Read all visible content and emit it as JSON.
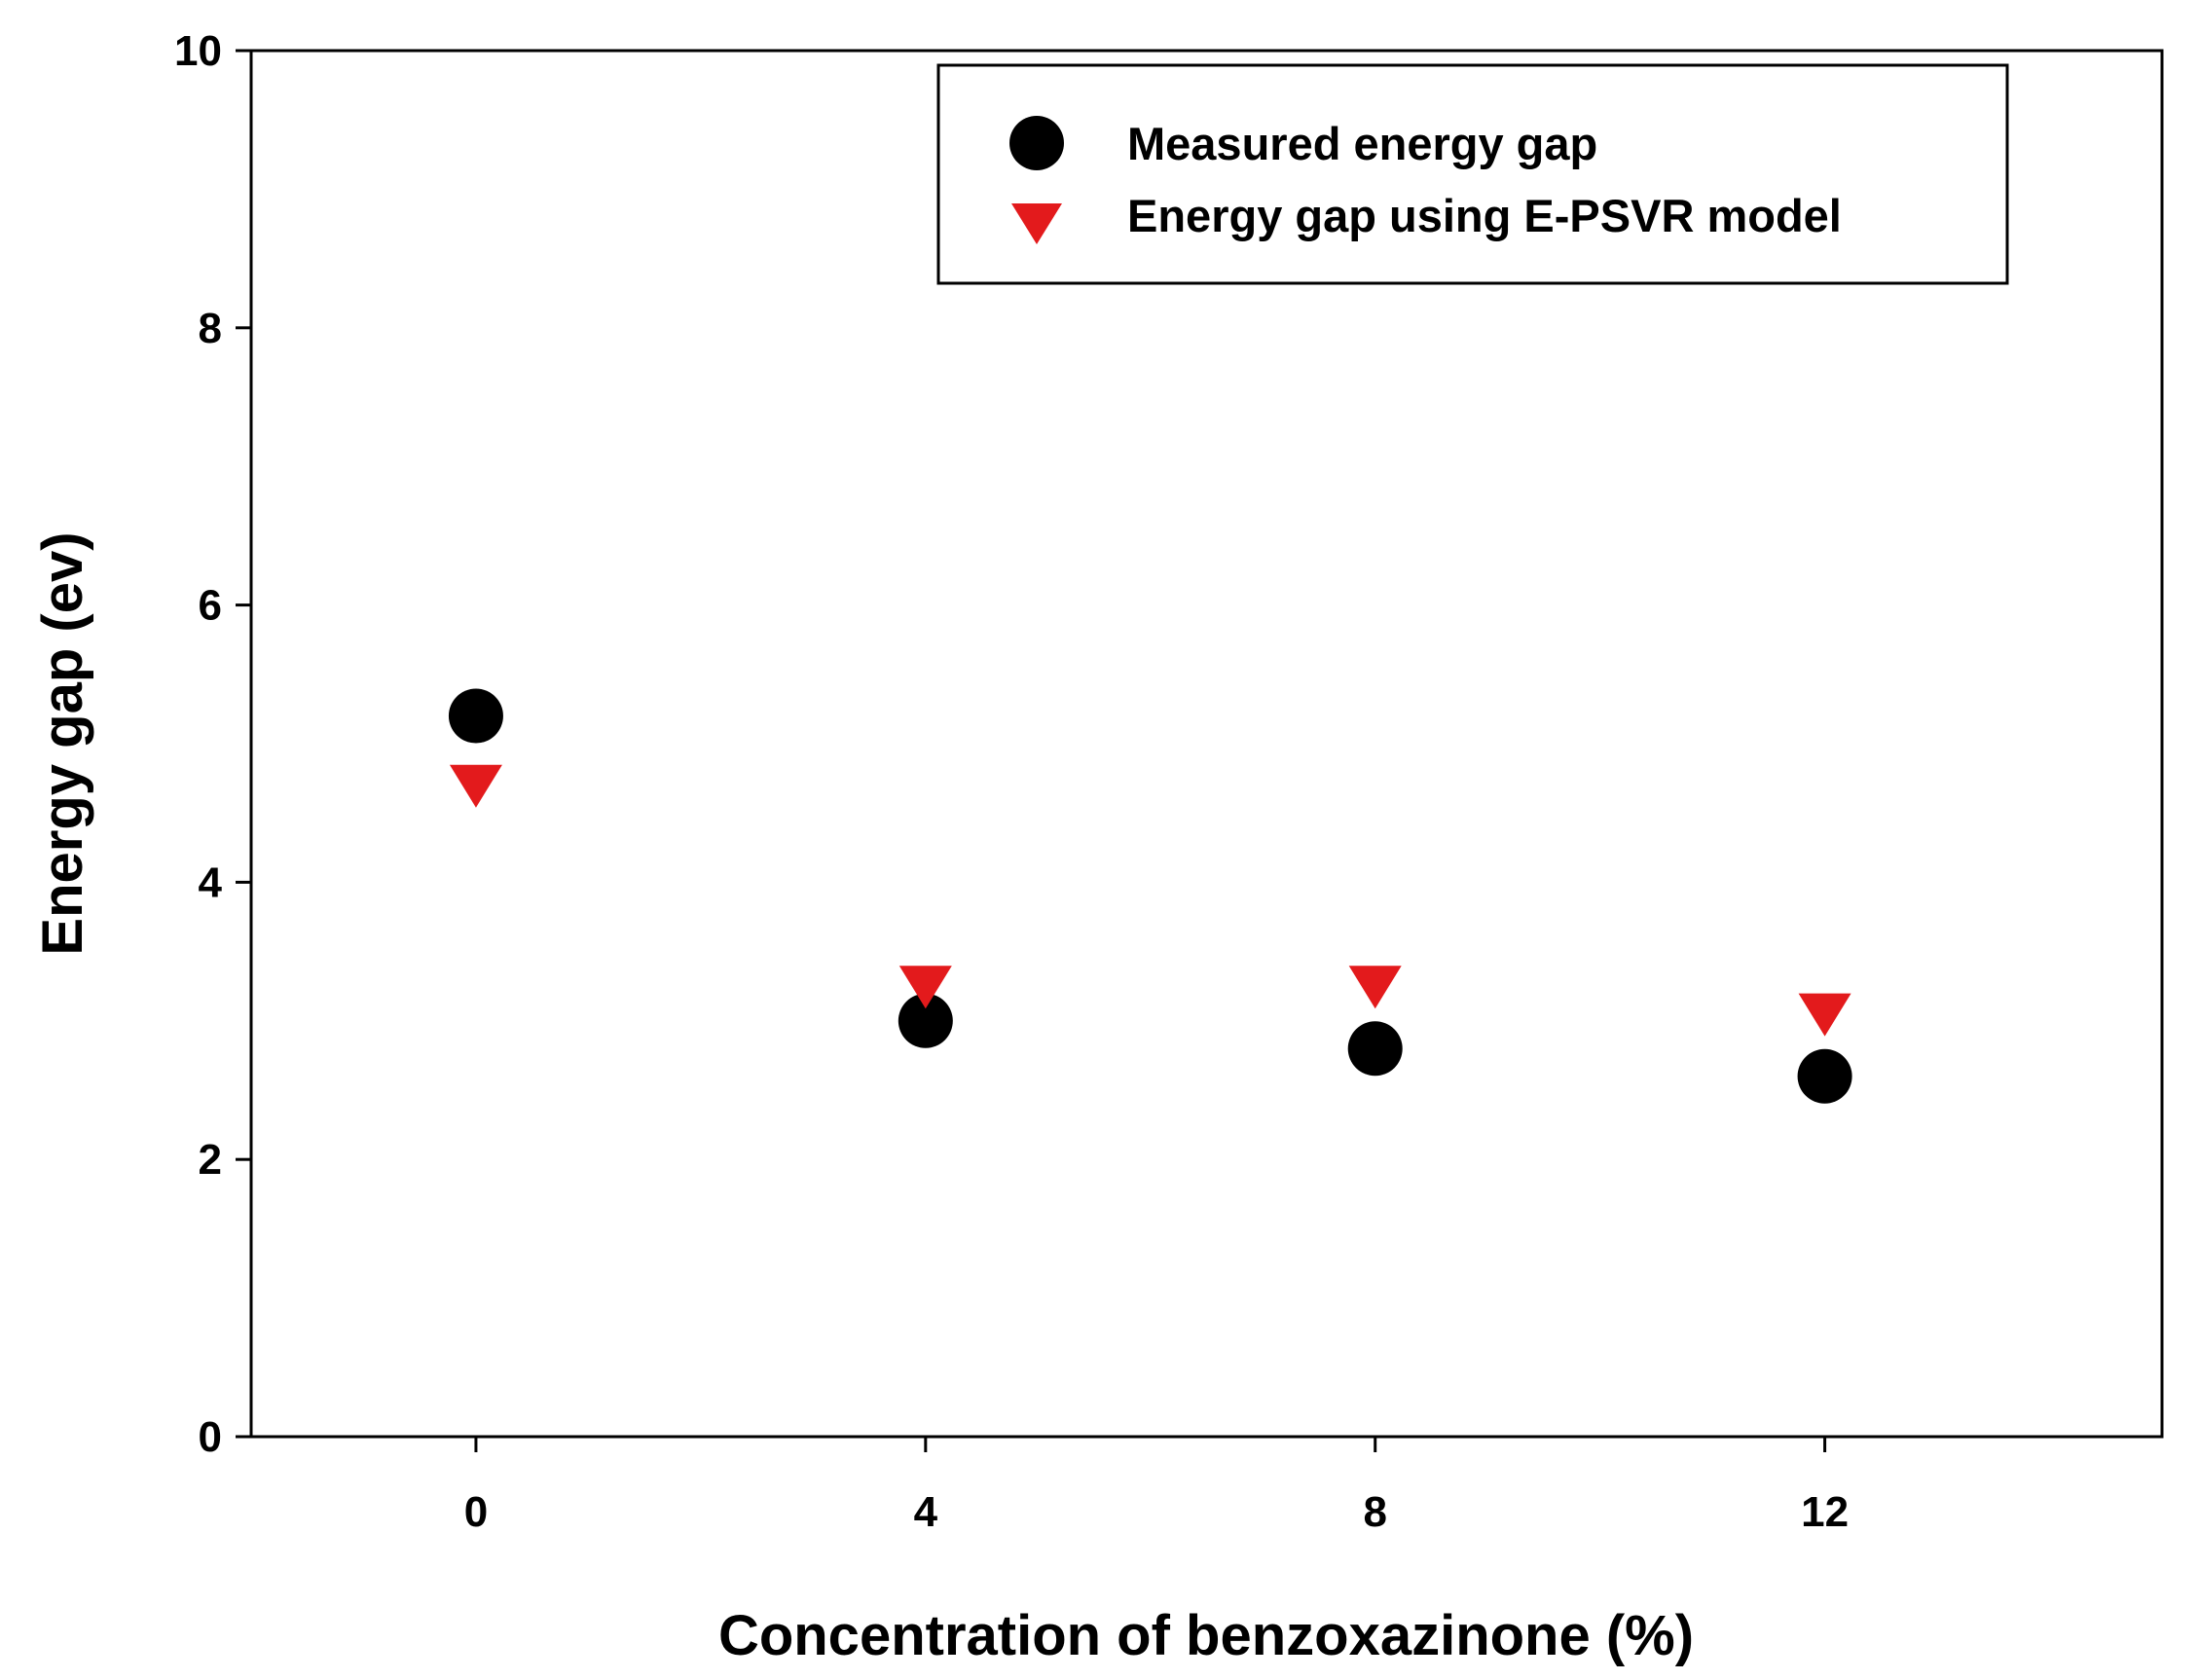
{
  "chart_data": {
    "type": "scatter",
    "title": "",
    "xlabel": "Concentration of benzoxazinone (%)",
    "ylabel": "Energy gap (ev)",
    "xlim": [
      -2,
      15
    ],
    "ylim": [
      0,
      10
    ],
    "x_ticks": [
      0,
      4,
      8,
      12
    ],
    "y_ticks": [
      0,
      2,
      4,
      6,
      8,
      10
    ],
    "grid": false,
    "legend_position": "top-right",
    "series": [
      {
        "name": "Measured energy gap",
        "marker": "circle",
        "color": "#000000",
        "x": [
          0,
          4,
          8,
          12
        ],
        "y": [
          5.2,
          3.0,
          2.8,
          2.6
        ]
      },
      {
        "name": "Energy gap using E-PSVR model",
        "marker": "triangle-down",
        "color": "#e31a1c",
        "x": [
          0,
          4,
          8,
          12
        ],
        "y": [
          4.7,
          3.25,
          3.25,
          3.05
        ]
      }
    ]
  }
}
